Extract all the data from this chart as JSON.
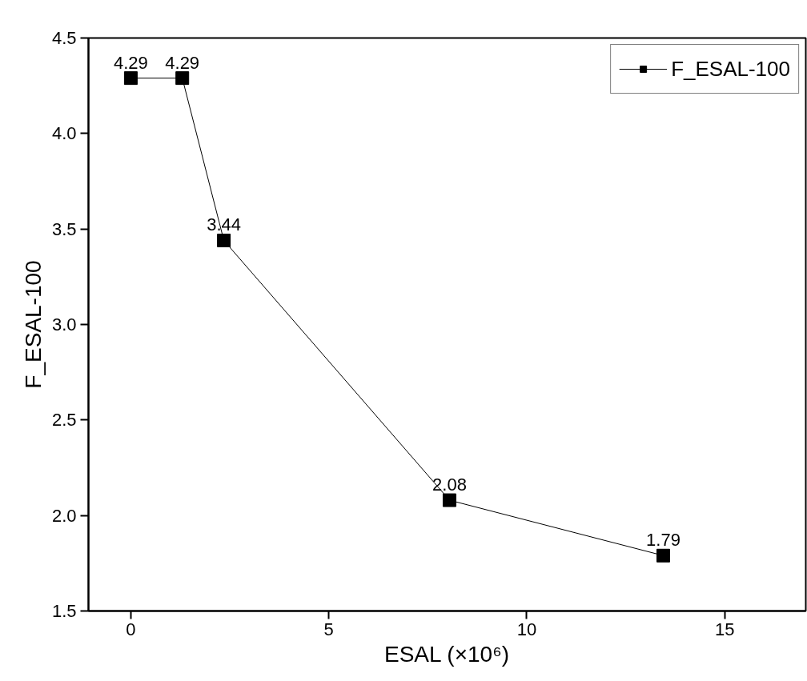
{
  "chart_data": {
    "type": "line",
    "xlabel": "ESAL (×10⁶)",
    "ylabel": "F_ESAL-100",
    "x": [
      0,
      1.3,
      2.35,
      8.05,
      13.45
    ],
    "series": [
      {
        "name": "F_ESAL-100",
        "color": "#000000",
        "values": [
          4.29,
          4.29,
          3.44,
          2.08,
          1.79
        ]
      }
    ],
    "marker": "square",
    "line_style": "solid",
    "data_labels": true,
    "legend": "top right",
    "grid": false,
    "xlim": [
      -1.07,
      17.05
    ],
    "xticks": [
      0,
      5,
      10,
      15
    ],
    "ylim": [
      1.5,
      4.5
    ],
    "yticks": [
      1.5,
      {
        "value": 2,
        "label": "2.0"
      },
      2.5,
      {
        "value": 3,
        "label": "3.0"
      },
      3.5,
      {
        "value": 4,
        "label": "4.0"
      },
      4.5
    ]
  }
}
